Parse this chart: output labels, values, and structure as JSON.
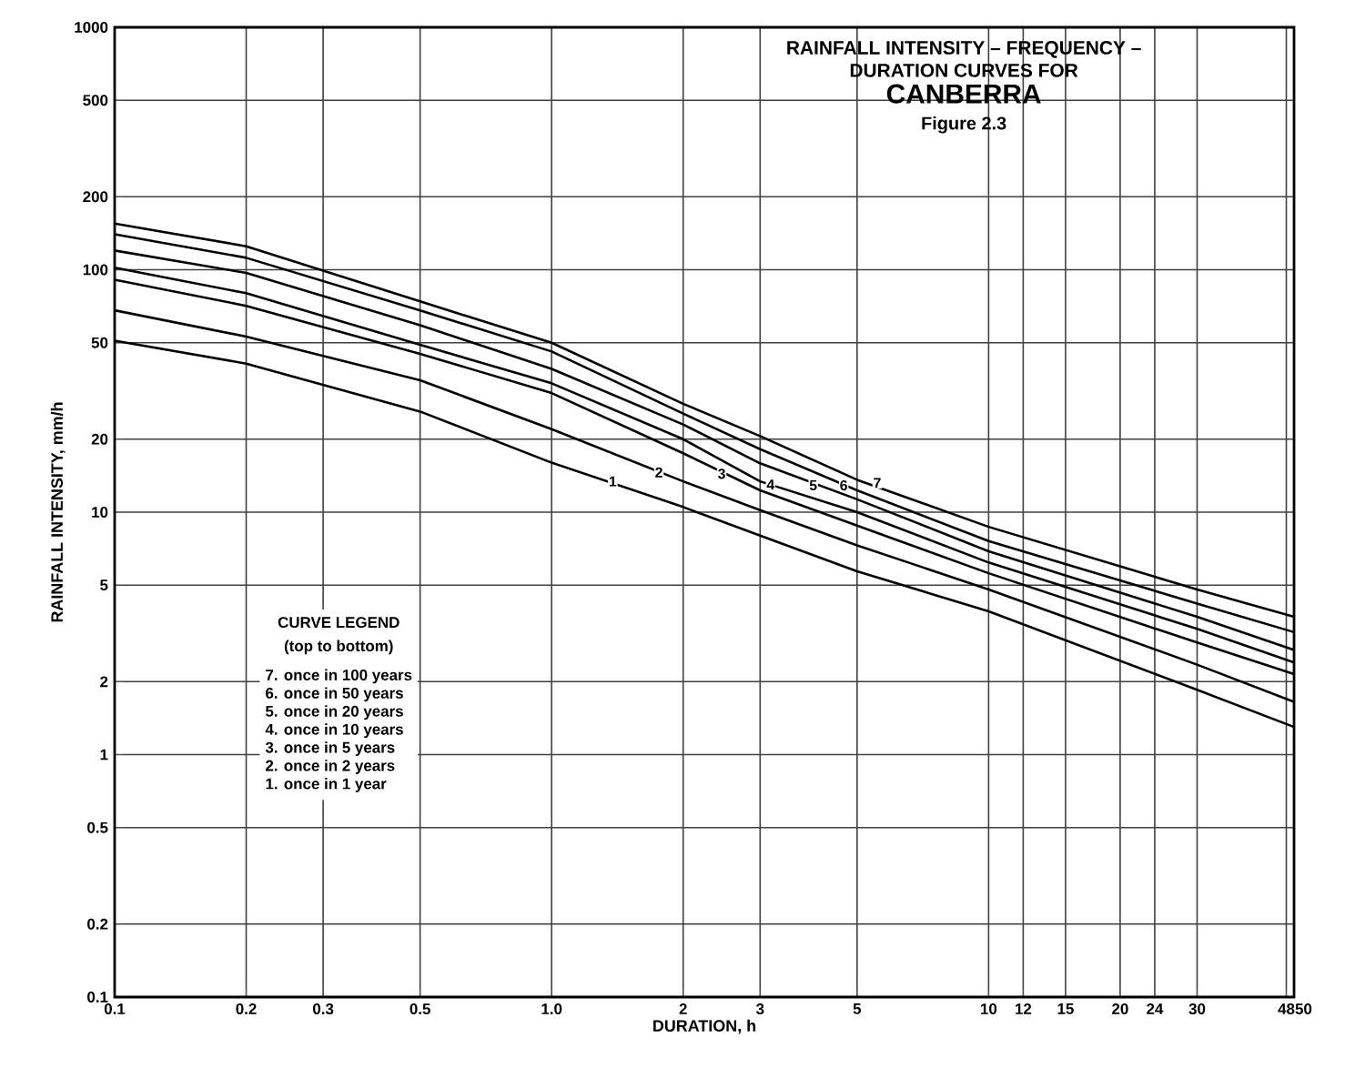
{
  "chart_data": {
    "type": "line",
    "title": "RAINFALL INTENSITY – FREQUENCY – DURATION CURVES FOR",
    "subtitle": "CANBERRA",
    "xlabel": "DURATION, h",
    "ylabel": "RAINFALL INTENSITY, mm/h",
    "x": [
      0.1,
      0.2,
      0.5,
      1,
      2,
      3,
      5,
      10,
      30,
      50
    ],
    "series": [
      {
        "color": "#000000",
        "values": [
          51,
          41,
          26,
          16,
          10.5,
          8.0,
          5.7,
          3.9,
          1.85,
          1.3
        ]
      },
      {
        "color": "#000000",
        "values": [
          68,
          53,
          35,
          22,
          13.4,
          10.2,
          7.3,
          4.8,
          2.35,
          1.65
        ]
      },
      {
        "color": "#000000",
        "values": [
          91,
          71,
          45,
          31,
          17.5,
          12.3,
          8.8,
          5.6,
          2.9,
          2.15
        ]
      },
      {
        "color": "#000000",
        "values": [
          102,
          80,
          49,
          34,
          20,
          13.4,
          10,
          6.2,
          3.3,
          2.4
        ]
      },
      {
        "color": "#000000",
        "values": [
          120,
          97,
          59,
          39,
          23,
          15.9,
          11.3,
          6.9,
          3.7,
          2.7
        ]
      },
      {
        "color": "#000000",
        "values": [
          140,
          112,
          68,
          46,
          25.5,
          18.2,
          12.3,
          7.6,
          4.2,
          3.2
        ]
      },
      {
        "color": "#000000",
        "values": [
          155,
          125,
          74,
          50,
          28,
          20.6,
          13.6,
          8.7,
          4.8,
          3.7
        ]
      }
    ],
    "log": "xy",
    "grid": true,
    "xlim": [
      0.1,
      50
    ],
    "ylim": [
      0.1,
      1000
    ],
    "xticks": [
      0.1,
      0.2,
      0.3,
      0.5,
      {
        "value": 1,
        "label": "1.0"
      },
      2,
      3,
      5,
      10,
      12,
      15,
      20,
      24,
      30,
      48,
      50
    ],
    "yticks": [
      0.1,
      0.2,
      0.5,
      1,
      2,
      5,
      10,
      20,
      50,
      100,
      200,
      500,
      1000
    ],
    "annotations": [
      {
        "text": "1",
        "x": 1.38,
        "y": 13.4
      },
      {
        "text": "2",
        "x": 1.76,
        "y": 14.6
      },
      {
        "text": "3",
        "x": 2.45,
        "y": 14.4
      },
      {
        "text": "4",
        "x": 3.17,
        "y": 13.0
      },
      {
        "text": "5",
        "x": 3.97,
        "y": 12.9
      },
      {
        "text": "6",
        "x": 4.66,
        "y": 12.9
      },
      {
        "text": "7",
        "x": 5.56,
        "y": 13.2
      },
      "Figure 2.3",
      "CURVE LEGEND",
      "(top to bottom)",
      "7. once in 100 years",
      "6. once in 50 years",
      "5. once in 20 years",
      "4. once in 10 years",
      "3. once in 5 years",
      "2. once in 2 years",
      "1. once in 1 year"
    ]
  }
}
